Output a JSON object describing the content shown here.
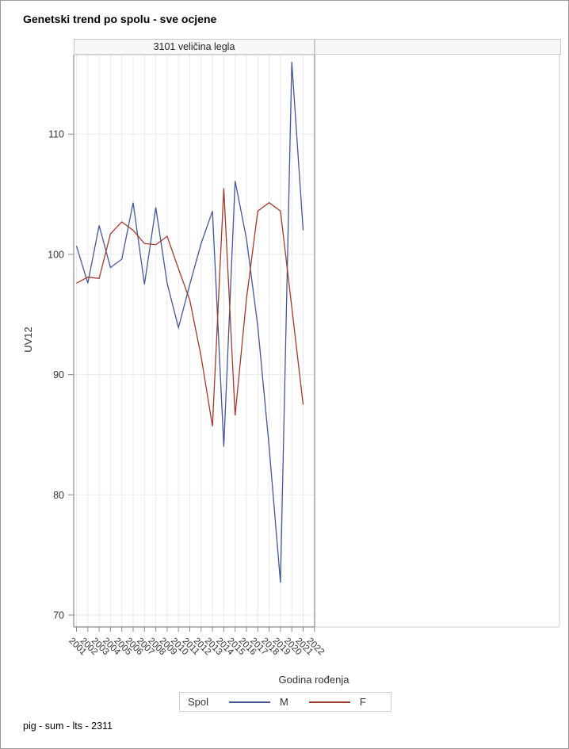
{
  "title": "Genetski trend po spolu - sve ocjene",
  "panels": {
    "left_header": "3101 veličina legla",
    "right_header": ""
  },
  "axes": {
    "x_label": "Godina rođenja",
    "y_label": "UV12"
  },
  "legend": {
    "title": "Spol",
    "male_label": "M",
    "female_label": "F"
  },
  "footer": "pig - sum - lts - 2311",
  "colors": {
    "male_line": "#445694",
    "female_line": "#A23A2E",
    "gridline": "#ebebeb",
    "axis_wall": "#8b8b8b",
    "panel_border": "#c9c9c9",
    "panel_fill": "#f8f8f9",
    "tick_text": "#333333"
  },
  "chart_data": {
    "type": "line",
    "title": "Genetski trend po spolu - sve ocjene",
    "panel_band": "3101 veličina legla",
    "xlabel": "Godina rođenja",
    "ylabel": "UV12",
    "y_ticks": [
      70,
      80,
      90,
      100,
      110
    ],
    "ylim": [
      69,
      116.6
    ],
    "grid": true,
    "legend_position": "bottom",
    "legend_title": "Spol",
    "categories": [
      "2001",
      "2002",
      "2003",
      "2004",
      "2005",
      "2006",
      "2007",
      "2008",
      "2009",
      "2010",
      "2011",
      "2012",
      "2013",
      "2014",
      "2015",
      "2016",
      "2017",
      "2018",
      "2019",
      "2020",
      "2021",
      "2022"
    ],
    "series": [
      {
        "name": "M",
        "color": "#445694",
        "values": [
          100.7,
          97.6,
          102.4,
          98.9,
          99.6,
          104.3,
          97.5,
          103.9,
          97.6,
          93.9,
          97.5,
          100.9,
          103.6,
          84.0,
          106.1,
          101.3,
          94.0,
          84.0,
          72.7,
          116.0,
          102.0,
          null
        ]
      },
      {
        "name": "F",
        "color": "#A23A2E",
        "values": [
          97.6,
          98.1,
          98.0,
          101.7,
          102.7,
          102.0,
          100.9,
          100.8,
          101.5,
          98.8,
          96.2,
          91.5,
          85.7,
          105.5,
          86.6,
          96.3,
          103.6,
          104.3,
          103.6,
          95.6,
          87.5,
          null
        ]
      }
    ]
  }
}
